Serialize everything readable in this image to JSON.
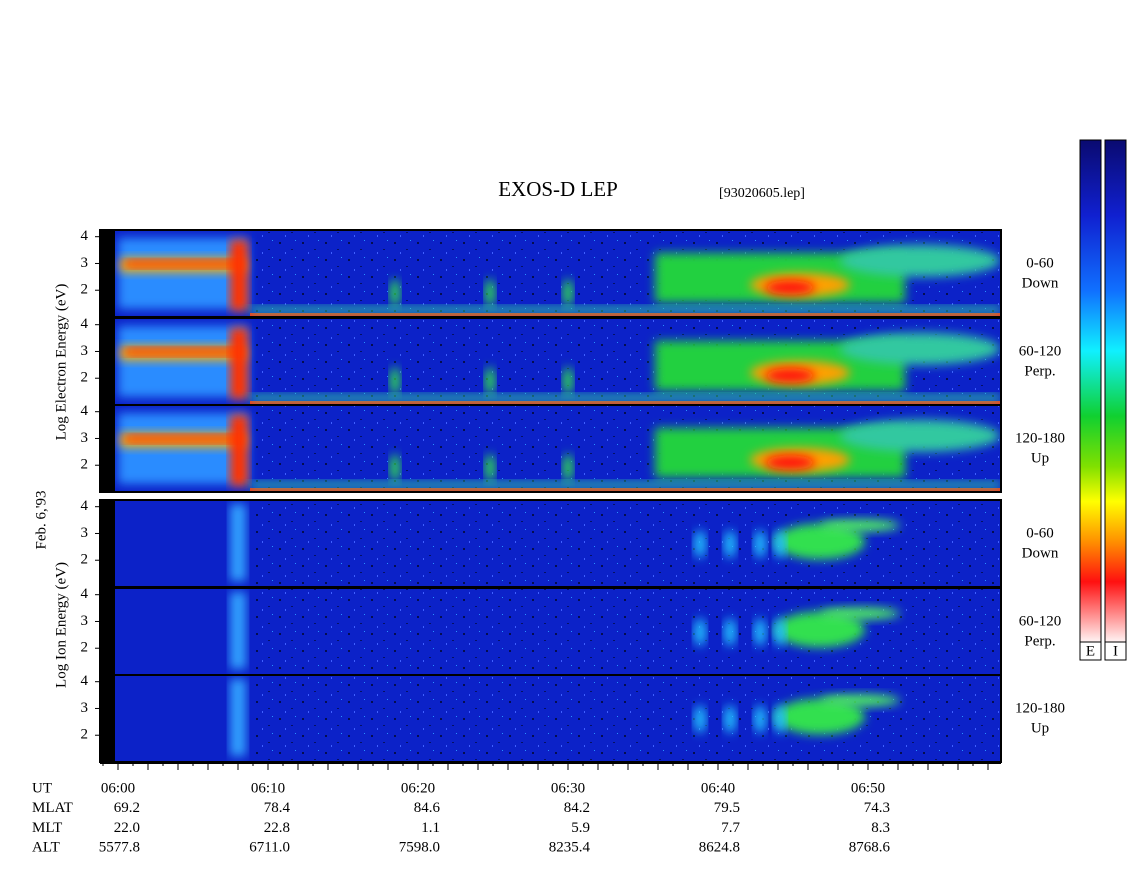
{
  "title": "EXOS-D LEP",
  "file": "[93020605.lep]",
  "date": "Feb. 6,'93",
  "yticks": [
    4,
    3,
    2
  ],
  "ylim": [
    1,
    4.25
  ],
  "electron": {
    "axis_label": "Log Electron Energy (eV)",
    "panels": [
      {
        "range": "0-60",
        "direction": "Down"
      },
      {
        "range": "60-120",
        "direction": "Perp."
      },
      {
        "range": "120-180",
        "direction": "Up"
      }
    ]
  },
  "ion": {
    "axis_label": "Log Ion Energy (eV)",
    "panels": [
      {
        "range": "0-60",
        "direction": "Down"
      },
      {
        "range": "60-120",
        "direction": "Perp."
      },
      {
        "range": "120-180",
        "direction": "Up"
      }
    ]
  },
  "colorbars": [
    "E",
    "I"
  ],
  "ephemeris": {
    "labels": [
      "UT",
      "MLAT",
      "MLT",
      "ALT"
    ],
    "UT": [
      "06:00",
      "06:10",
      "06:20",
      "06:30",
      "06:40",
      "06:50"
    ],
    "MLAT": [
      "69.2",
      "78.4",
      "84.6",
      "84.2",
      "79.5",
      "74.3"
    ],
    "MLT": [
      "22.0",
      "22.8",
      "1.1",
      "5.9",
      "7.7",
      "8.3"
    ],
    "ALT": [
      "5577.8",
      "6711.0",
      "7598.0",
      "8235.4",
      "8624.8",
      "8768.6"
    ]
  }
}
